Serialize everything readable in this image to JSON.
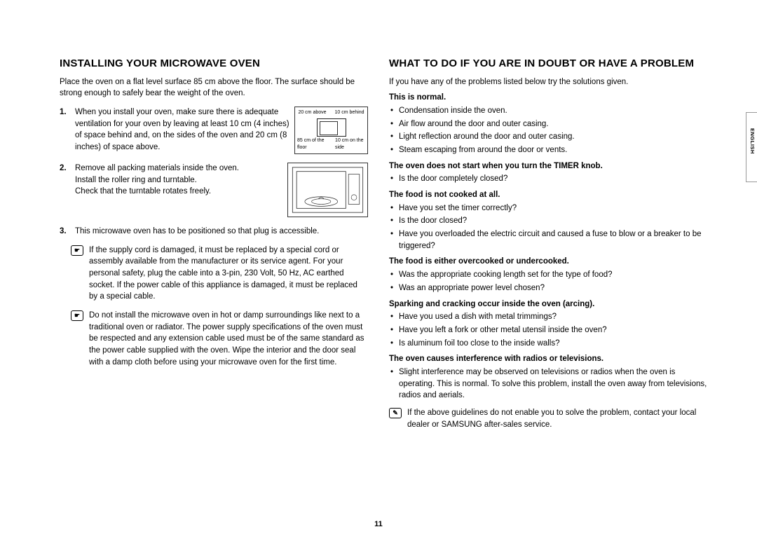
{
  "page_number": "11",
  "language_tab": "ENGLISH",
  "left": {
    "heading": "Installing your microwave oven",
    "intro": "Place the oven on a flat level surface 85 cm above the floor. The surface should be strong enough to safely bear the weight of the oven.",
    "step1_num": "1.",
    "step1": "When you install your oven, make sure there is adequate ventilation for your oven by leaving at least 10 cm (4 inches) of space behind and, on the sides of the oven and 20 cm (8 inches) of space above.",
    "step2_num": "2.",
    "step2a": "Remove all packing materials inside the oven.",
    "step2b": "Install the roller ring and turntable.",
    "step2c": "Check that the turntable rotates freely.",
    "step3_num": "3.",
    "step3": "This microwave oven has to be positioned so that plug is accessible.",
    "note1": "If the supply cord is damaged, it must be replaced by a special cord or assembly available from the manufacturer or its service agent. For your personal safety, plug the cable into a 3-pin, 230 Volt, 50 Hz, AC earthed socket. If the power cable of this appliance is damaged, it must be replaced by a special cable.",
    "note2": "Do not install the microwave oven in hot or damp surroundings like next to a traditional oven or radiator. The power supply specifications of the oven must be respected and any extension cable used must be of the same standard as the power cable supplied with the oven. Wipe the interior and the door seal with a damp cloth before using your microwave oven for the first time.",
    "diagram_labels": {
      "above": "20 cm above",
      "behind": "10 cm behind",
      "floor": "85 cm of the floor",
      "side": "10 cm on the side"
    }
  },
  "right": {
    "heading": "What to do if you are in doubt or have a problem",
    "intro": "If you have any of the problems listed below try the solutions given.",
    "s1_title": "This is normal.",
    "s1_items": [
      "Condensation inside the oven.",
      "Air flow around the door and outer casing.",
      "Light reflection around the door and outer casing.",
      "Steam escaping from around the door or vents."
    ],
    "s2_title": "The oven does not start when you turn the TIMER knob.",
    "s2_items": [
      "Is the door completely closed?"
    ],
    "s3_title": "The food is not cooked at all.",
    "s3_items": [
      "Have you set the timer correctly?",
      "Is the door closed?",
      "Have you overloaded the electric circuit and caused a fuse to blow or a breaker to be triggered?"
    ],
    "s4_title": "The food is either overcooked or undercooked.",
    "s4_items": [
      "Was the appropriate cooking length set for the type of food?",
      "Was an appropriate power level chosen?"
    ],
    "s5_title": "Sparking and cracking occur inside the oven (arcing).",
    "s5_items": [
      "Have you used a dish with metal trimmings?",
      "Have you left a fork or other metal utensil inside the oven?",
      "Is aluminum foil too close to the inside walls?"
    ],
    "s6_title": "The oven causes interference with radios or televisions.",
    "s6_items": [
      "Slight interference may be observed on televisions or radios when the oven is operating. This is normal. To solve this problem, install the oven away from televisions, radios and aerials."
    ],
    "note": "If the above guidelines do not enable you to solve the problem, contact your local dealer or SAMSUNG after-sales service."
  }
}
